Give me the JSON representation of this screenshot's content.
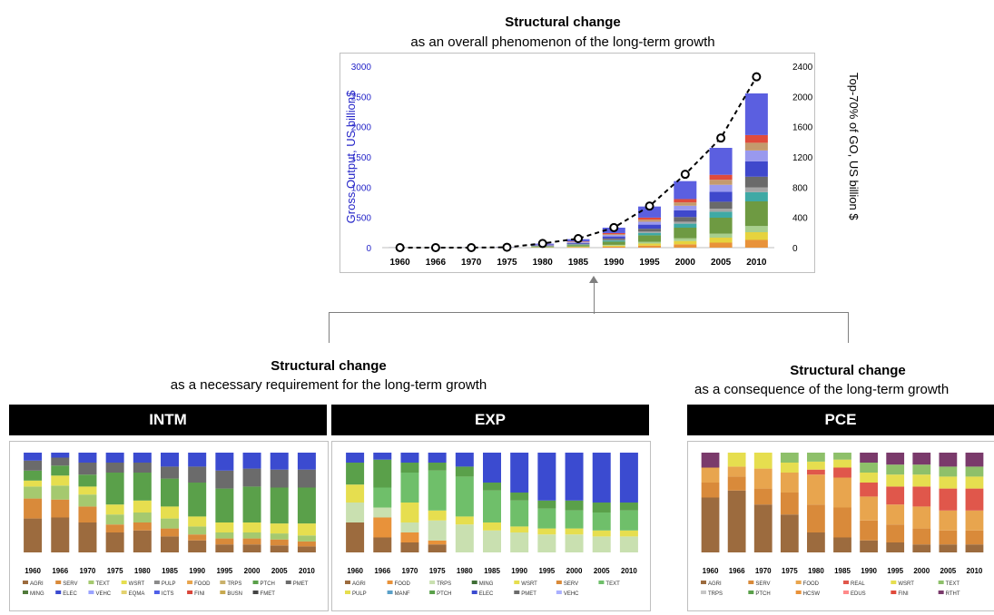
{
  "top": {
    "title": "Structural change",
    "subtitle": "as an overall phenomenon of the long-term growth"
  },
  "left_section": {
    "title": "Structural change",
    "subtitle": "as a necessary requirement for the long-term growth"
  },
  "right_section": {
    "title": "Structural change",
    "subtitle": "as a consequence of the long-term growth"
  },
  "chart_data": [
    {
      "type": "bar",
      "id": "main",
      "stacked": true,
      "categories": [
        "1960",
        "1966",
        "1970",
        "1975",
        "1980",
        "1985",
        "1990",
        "1995",
        "2000",
        "2005",
        "2010"
      ],
      "ylabel": "Gross Output, US billion$",
      "y2label": "Top-70% of GO, US billion $",
      "ylim": [
        0,
        3000
      ],
      "yticks": [
        0,
        500,
        1000,
        1500,
        2000,
        2500,
        3000
      ],
      "y2lim": [
        0,
        2400
      ],
      "y2ticks": [
        0,
        400,
        800,
        1200,
        1600,
        2000,
        2400
      ],
      "grid": false,
      "bar_totals": [
        3,
        4,
        5,
        10,
        65,
        140,
        330,
        680,
        1100,
        1650,
        2550
      ],
      "segment_colors": [
        "#e8923a",
        "#e6d33e",
        "#a8cf8e",
        "#6e9a42",
        "#3fa9a5",
        "#a5a5a5",
        "#6a6a6a",
        "#3f48cc",
        "#9999ee",
        "#c49a6c",
        "#e04b3c",
        "#5b5fe0"
      ],
      "segment_shares": [
        0.05,
        0.05,
        0.04,
        0.16,
        0.06,
        0.03,
        0.07,
        0.1,
        0.07,
        0.05,
        0.05,
        0.27
      ],
      "line": {
        "name": "Top-70% of GO",
        "axis": "right",
        "style": "dashed",
        "values": [
          0,
          0,
          0,
          5,
          55,
          120,
          265,
          550,
          970,
          1450,
          2260
        ]
      }
    },
    {
      "type": "bar",
      "id": "intm",
      "panel_title": "INTM",
      "normalized": true,
      "categories": [
        "1960",
        "1966",
        "1970",
        "1975",
        "1980",
        "1985",
        "1990",
        "1995",
        "2000",
        "2005",
        "2010"
      ],
      "legend": [
        "AGRI",
        "SERV",
        "TEXT",
        "WSRT",
        "PULP",
        "FOOD",
        "TRPS",
        "PTCH",
        "PMET",
        "MING",
        "ELEC",
        "VEHC",
        "EQMA",
        "ICTS",
        "FINI",
        "BUSN",
        "FMET"
      ],
      "legend_colors": [
        "#9c6b3e",
        "#d98a3a",
        "#a5c96f",
        "#e6de4f",
        "#8a8a8a",
        "#e8a54e",
        "#c9b16b",
        "#5aa04a",
        "#6b6b6b",
        "#507a3a",
        "#3b4bd0",
        "#9aa3ff",
        "#e3d26f",
        "#4f5fe8",
        "#d9463a",
        "#c7a94f",
        "#444"
      ],
      "segments": [
        [
          0.34,
          0.2,
          0.12,
          0.06,
          0.1,
          0.1,
          0.08
        ],
        [
          0.35,
          0.18,
          0.14,
          0.1,
          0.1,
          0.08,
          0.05
        ],
        [
          0.3,
          0.16,
          0.12,
          0.08,
          0.12,
          0.12,
          0.1
        ],
        [
          0.2,
          0.08,
          0.1,
          0.1,
          0.32,
          0.1,
          0.1
        ],
        [
          0.22,
          0.08,
          0.1,
          0.12,
          0.28,
          0.1,
          0.1
        ],
        [
          0.16,
          0.08,
          0.1,
          0.12,
          0.28,
          0.12,
          0.14
        ],
        [
          0.12,
          0.06,
          0.08,
          0.1,
          0.34,
          0.16,
          0.14
        ],
        [
          0.08,
          0.06,
          0.06,
          0.1,
          0.34,
          0.18,
          0.18
        ],
        [
          0.08,
          0.06,
          0.06,
          0.1,
          0.36,
          0.18,
          0.16
        ],
        [
          0.07,
          0.06,
          0.06,
          0.1,
          0.36,
          0.18,
          0.17
        ],
        [
          0.06,
          0.05,
          0.06,
          0.12,
          0.36,
          0.18,
          0.17
        ]
      ],
      "segment_colors": [
        "#9c6b3e",
        "#d98a3a",
        "#a5c96f",
        "#e6de4f",
        "#5aa04a",
        "#6b6b6b",
        "#3b4bd0"
      ]
    },
    {
      "type": "bar",
      "id": "exp",
      "panel_title": "EXP",
      "normalized": true,
      "categories": [
        "1960",
        "1966",
        "1970",
        "1975",
        "1980",
        "1985",
        "1990",
        "1995",
        "2000",
        "2005",
        "2010"
      ],
      "legend": [
        "AGRI",
        "FOOD",
        "TRPS",
        "MING",
        "WSRT",
        "SERV",
        "TEXT",
        "PULP",
        "MANF",
        "PTCH",
        "ELEC",
        "PMET",
        "VEHC"
      ],
      "legend_colors": [
        "#9c6b3e",
        "#e8923a",
        "#c9e0b0",
        "#3f6e35",
        "#e6de4f",
        "#d98a3a",
        "#6fbf6a",
        "#e6de4f",
        "#5aa0c8",
        "#5aa04a",
        "#3b4bd0",
        "#6b6b6b",
        "#aab0ff"
      ],
      "segments": [
        [
          0.3,
          0.0,
          0.2,
          0.18,
          0.0,
          0.22,
          0.1
        ],
        [
          0.15,
          0.2,
          0.1,
          0.0,
          0.2,
          0.28,
          0.07
        ],
        [
          0.1,
          0.1,
          0.1,
          0.2,
          0.3,
          0.1,
          0.1
        ],
        [
          0.08,
          0.04,
          0.2,
          0.1,
          0.4,
          0.08,
          0.1
        ],
        [
          0.0,
          0.0,
          0.28,
          0.08,
          0.4,
          0.1,
          0.14
        ],
        [
          0.0,
          0.0,
          0.22,
          0.08,
          0.32,
          0.08,
          0.3
        ],
        [
          0.0,
          0.0,
          0.2,
          0.06,
          0.26,
          0.08,
          0.4
        ],
        [
          0.0,
          0.0,
          0.18,
          0.06,
          0.2,
          0.08,
          0.48
        ],
        [
          0.0,
          0.0,
          0.18,
          0.06,
          0.18,
          0.1,
          0.48
        ],
        [
          0.0,
          0.0,
          0.16,
          0.06,
          0.18,
          0.1,
          0.5
        ],
        [
          0.0,
          0.0,
          0.16,
          0.06,
          0.2,
          0.08,
          0.5
        ]
      ],
      "segment_colors": [
        "#9c6b3e",
        "#e8923a",
        "#c9e0b0",
        "#e6de4f",
        "#6fbf6a",
        "#5aa04a",
        "#3b4bd0"
      ]
    },
    {
      "type": "bar",
      "id": "pce",
      "panel_title": "PCE",
      "normalized": true,
      "categories": [
        "1960",
        "1966",
        "1970",
        "1975",
        "1980",
        "1985",
        "1990",
        "1995",
        "2000",
        "2005",
        "2010"
      ],
      "legend": [
        "AGRI",
        "SERV",
        "FOOD",
        "REAL",
        "WSRT",
        "TEXT",
        "TRPS",
        "PTCH",
        "HCSW",
        "EDUS",
        "FINI",
        "RTHT"
      ],
      "legend_colors": [
        "#9c6b3e",
        "#d98a3a",
        "#e8a54e",
        "#e0574b",
        "#e6de4f",
        "#8ec06a",
        "#c7c7c7",
        "#5aa04a",
        "#e8923a",
        "#ff8a8a",
        "#e04b3c",
        "#7a3a6b"
      ],
      "segments": [
        [
          0.55,
          0.15,
          0.15,
          0.0,
          0.0,
          0.0,
          0.15
        ],
        [
          0.62,
          0.14,
          0.1,
          0.0,
          0.14,
          0.0,
          0.0
        ],
        [
          0.48,
          0.16,
          0.2,
          0.0,
          0.16,
          0.0,
          0.0
        ],
        [
          0.38,
          0.22,
          0.2,
          0.0,
          0.1,
          0.1,
          0.0
        ],
        [
          0.2,
          0.28,
          0.3,
          0.05,
          0.08,
          0.09,
          0.0
        ],
        [
          0.15,
          0.3,
          0.3,
          0.1,
          0.08,
          0.07,
          0.0
        ],
        [
          0.12,
          0.2,
          0.24,
          0.14,
          0.1,
          0.1,
          0.1
        ],
        [
          0.1,
          0.18,
          0.2,
          0.18,
          0.12,
          0.1,
          0.12
        ],
        [
          0.08,
          0.16,
          0.22,
          0.2,
          0.12,
          0.1,
          0.12
        ],
        [
          0.08,
          0.14,
          0.2,
          0.22,
          0.12,
          0.1,
          0.14
        ],
        [
          0.08,
          0.14,
          0.2,
          0.22,
          0.12,
          0.1,
          0.14
        ]
      ],
      "segment_colors": [
        "#9c6b3e",
        "#d98a3a",
        "#e8a54e",
        "#e0574b",
        "#e6de4f",
        "#8ec06a",
        "#7a3a6b"
      ]
    }
  ]
}
